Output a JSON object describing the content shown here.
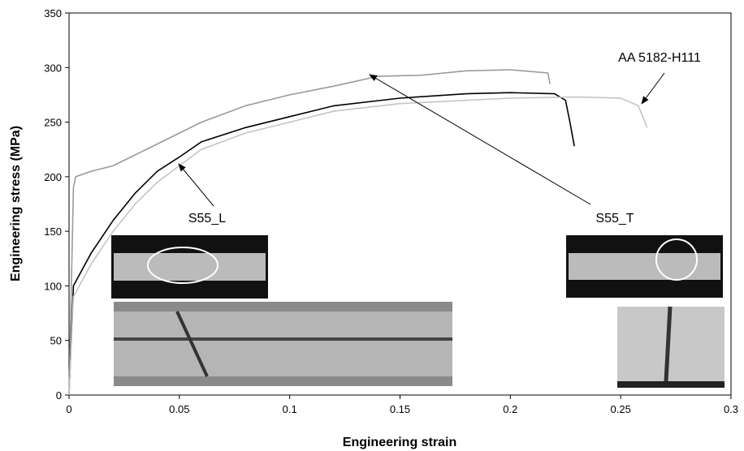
{
  "chart_data": {
    "type": "line",
    "xlabel": "Engineering strain",
    "ylabel": "Engineering stress (MPa)",
    "xlim": [
      0,
      0.3
    ],
    "ylim": [
      0,
      350
    ],
    "xticks": [
      0,
      0.05,
      0.1,
      0.15,
      0.2,
      0.25,
      0.3
    ],
    "yticks": [
      0,
      50,
      100,
      150,
      200,
      250,
      300,
      350
    ],
    "grid": false,
    "series": [
      {
        "name": "S55_L",
        "color": "#9a9a9a",
        "x": [
          0,
          0.002,
          0.003,
          0.01,
          0.02,
          0.04,
          0.06,
          0.08,
          0.1,
          0.12,
          0.14,
          0.16,
          0.18,
          0.2,
          0.217,
          0.218
        ],
        "values": [
          0,
          190,
          200,
          205,
          210,
          230,
          250,
          265,
          275,
          283,
          292,
          293,
          297,
          298,
          295,
          285
        ]
      },
      {
        "name": "S55_T",
        "color": "#000000",
        "x": [
          0,
          0.002,
          0.01,
          0.02,
          0.03,
          0.04,
          0.05,
          0.06,
          0.08,
          0.1,
          0.12,
          0.15,
          0.18,
          0.2,
          0.22,
          0.225,
          0.227,
          0.229
        ],
        "values": [
          0,
          100,
          130,
          160,
          185,
          205,
          218,
          232,
          245,
          255,
          265,
          272,
          276,
          277,
          276,
          270,
          250,
          228
        ]
      },
      {
        "name": "AA 5182-H111",
        "color": "#c4c4c4",
        "x": [
          0,
          0.002,
          0.01,
          0.02,
          0.03,
          0.04,
          0.05,
          0.06,
          0.08,
          0.1,
          0.12,
          0.15,
          0.2,
          0.23,
          0.25,
          0.258,
          0.262
        ],
        "values": [
          0,
          90,
          120,
          150,
          175,
          195,
          210,
          225,
          240,
          250,
          260,
          267,
          272,
          273,
          272,
          265,
          245
        ]
      }
    ]
  }
}
